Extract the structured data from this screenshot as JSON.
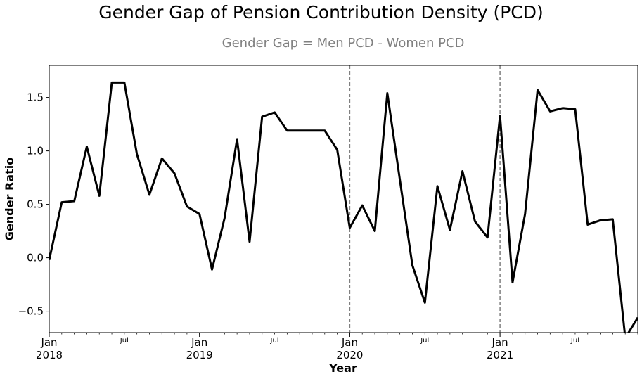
{
  "chart_data": {
    "type": "line",
    "title": "Gender Gap of Pension Contribution Density (PCD)",
    "subtitle": "Gender Gap = Men PCD - Women PCD",
    "xlabel": "Year",
    "ylabel": "Gender Ratio",
    "x_start": "2018-01",
    "x_end": "2021-12",
    "ylim": [
      -0.7,
      1.8
    ],
    "yticks": [
      -0.5,
      0.0,
      0.5,
      1.0,
      1.5
    ],
    "ytick_labels": [
      "−0.5",
      "0.0",
      "0.5",
      "1.0",
      "1.5"
    ],
    "major_ticks": [
      {
        "date": "2018-01",
        "month": "Jan",
        "year": "2018"
      },
      {
        "date": "2019-01",
        "month": "Jan",
        "year": "2019"
      },
      {
        "date": "2020-01",
        "month": "Jan",
        "year": "2020"
      },
      {
        "date": "2021-01",
        "month": "Jan",
        "year": "2021"
      }
    ],
    "minor_labels": [
      {
        "date": "2018-07",
        "label": "Jul"
      },
      {
        "date": "2019-07",
        "label": "Jul"
      },
      {
        "date": "2020-07",
        "label": "Jul"
      },
      {
        "date": "2021-07",
        "label": "Jul"
      }
    ],
    "vlines": [
      "2020-01",
      "2021-01"
    ],
    "line_color": "#000000",
    "vline_color": "#808080",
    "grid": false,
    "series": [
      {
        "x": [
          "2018-01",
          "2018-02",
          "2018-03",
          "2018-04",
          "2018-05",
          "2018-06",
          "2018-07",
          "2018-08",
          "2018-09",
          "2018-10",
          "2018-11",
          "2018-12",
          "2019-01",
          "2019-02",
          "2019-03",
          "2019-04",
          "2019-05",
          "2019-06",
          "2019-07",
          "2019-08",
          "2019-09",
          "2019-10",
          "2019-11",
          "2019-12",
          "2020-01",
          "2020-02",
          "2020-03",
          "2020-04",
          "2020-05",
          "2020-06",
          "2020-07",
          "2020-08",
          "2020-09",
          "2020-10",
          "2020-11",
          "2020-12",
          "2021-01",
          "2021-02",
          "2021-03",
          "2021-04",
          "2021-05",
          "2021-06",
          "2021-07",
          "2021-08",
          "2021-09",
          "2021-10",
          "2021-11",
          "2021-12"
        ],
        "values": [
          -0.02,
          0.52,
          0.53,
          1.04,
          0.58,
          1.64,
          1.64,
          0.97,
          0.59,
          0.93,
          0.79,
          0.48,
          0.41,
          -0.11,
          0.37,
          1.11,
          0.15,
          1.32,
          1.36,
          1.19,
          1.19,
          1.19,
          1.19,
          1.01,
          0.28,
          0.49,
          0.25,
          1.54,
          0.73,
          -0.07,
          -0.42,
          0.67,
          0.26,
          0.81,
          0.34,
          0.19,
          1.33,
          -0.23,
          0.41,
          1.57,
          1.37,
          1.4,
          1.39,
          0.31,
          0.35,
          0.36,
          -0.75,
          -0.56
        ]
      }
    ]
  }
}
